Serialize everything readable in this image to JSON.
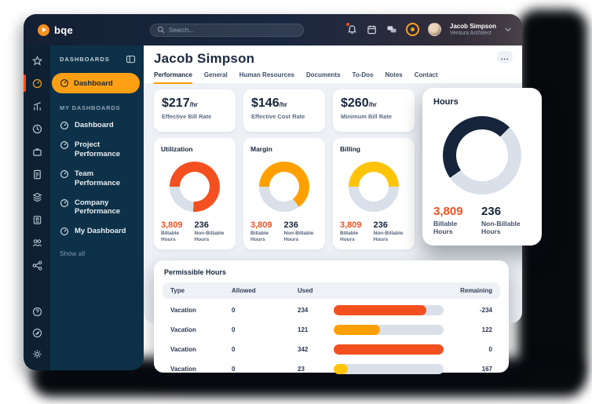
{
  "topbar": {
    "logo_text": "bqe",
    "search_placeholder": "Search...",
    "user_name": "Jacob Simpson",
    "user_role": "Ventura Architect"
  },
  "sidebar": {
    "section_title": "DASHBOARDS",
    "active_item": "Dashboard",
    "my_section_title": "MY DASHBOARDS",
    "items": [
      {
        "label": "Dashboard"
      },
      {
        "label": "Project Performance"
      },
      {
        "label": "Team Performance"
      },
      {
        "label": "Company Performance"
      },
      {
        "label": "My Dashboard"
      }
    ],
    "show_all_label": "Show all"
  },
  "main": {
    "title": "Jacob Simpson",
    "more_label": "..."
  },
  "tabs": [
    {
      "label": "Performance",
      "active": true
    },
    {
      "label": "General",
      "active": false
    },
    {
      "label": "Human Resources",
      "active": false
    },
    {
      "label": "Documents",
      "active": false
    },
    {
      "label": "To-Dos",
      "active": false
    },
    {
      "label": "Notes",
      "active": false
    },
    {
      "label": "Contact",
      "active": false
    }
  ],
  "stat_cards": [
    {
      "value": "$217",
      "unit": "/hr",
      "label": "Effective Bill Rate"
    },
    {
      "value": "$146",
      "unit": "/hr",
      "label": "Effective Cost Rate"
    },
    {
      "value": "$260",
      "unit": "/hr",
      "label": "Minimum Bill Rate"
    }
  ],
  "donut_cards": [
    {
      "title": "Utilization",
      "color": "#f4501f",
      "percent": 76,
      "start_deg": 270,
      "billable_value": "3,809",
      "billable_label": "Billable Hours",
      "non_billable_value": "236",
      "non_billable_label": "Non-Billable Hours"
    },
    {
      "title": "Margin",
      "color": "#ffa000",
      "percent": 65,
      "start_deg": 270,
      "billable_value": "3,809",
      "billable_label": "Billable Hours",
      "non_billable_value": "236",
      "non_billable_label": "Non-Billable Hours"
    },
    {
      "title": "Billing",
      "color": "#ffc40a",
      "percent": 50,
      "start_deg": 270,
      "billable_value": "3,809",
      "billable_label": "Billable Hours",
      "non_billable_value": "236",
      "non_billable_label": "Non-Billable Hours"
    }
  ],
  "hours_card": {
    "title": "Hours",
    "color": "#16253b",
    "percent": 47,
    "start_deg": 235,
    "billable_value": "3,809",
    "billable_label": "Billable Hours",
    "non_billable_value": "236",
    "non_billable_label": "Non-Billable Hours"
  },
  "permissible": {
    "title": "Permissible Hours",
    "columns": [
      "Type",
      "Allowed",
      "Used",
      "Remaining"
    ],
    "rows": [
      {
        "type": "Vacation",
        "allowed": "0",
        "used": "234",
        "remaining": "-234",
        "bar_percent": 84,
        "bar_color": "#f4501f"
      },
      {
        "type": "Vacation",
        "allowed": "0",
        "used": "121",
        "remaining": "122",
        "bar_percent": 42,
        "bar_color": "#ffa000"
      },
      {
        "type": "Vacation",
        "allowed": "0",
        "used": "342",
        "remaining": "0",
        "bar_percent": 100,
        "bar_color": "#f4501f"
      },
      {
        "type": "Vacation",
        "allowed": "0",
        "used": "23",
        "remaining": "167",
        "bar_percent": 13,
        "bar_color": "#ffc40a"
      }
    ]
  },
  "colors": {
    "accent_orange": "#f4501f",
    "amber": "#ffa000",
    "yellow": "#ffc40a",
    "navy": "#16253b",
    "pill_orange": "#ffa014",
    "donut_track": "#d9e0ea"
  }
}
